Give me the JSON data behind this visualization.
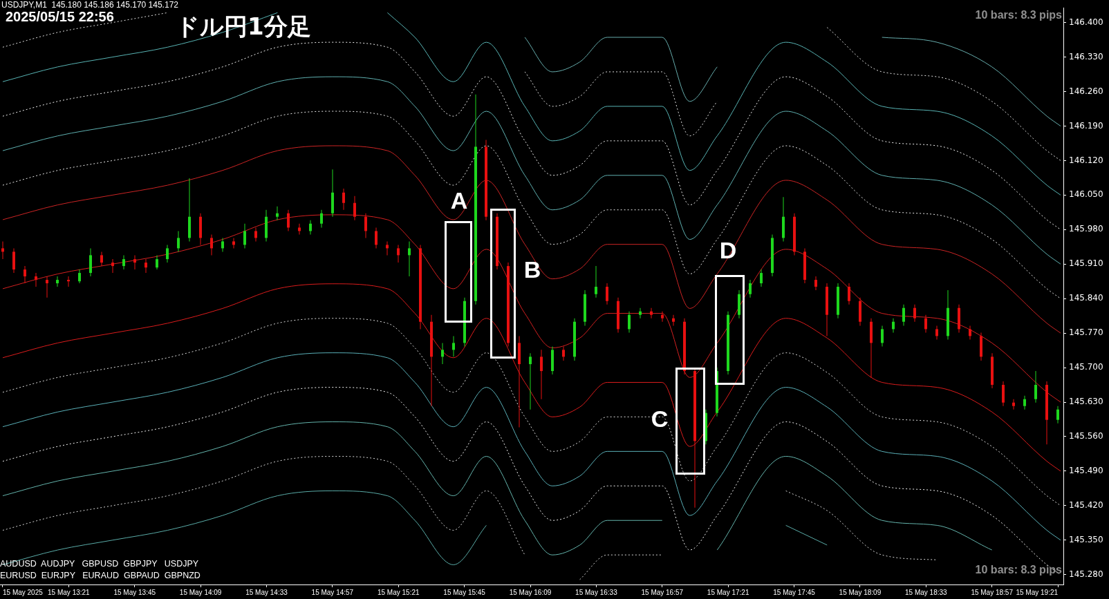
{
  "chart_data": {
    "type": "candlestick",
    "title": "ドル円1分足",
    "subtitle": "2025/05/15 22:56",
    "annotations": [
      "USDJPY,M1  145.180 145.186 145.170 145.172",
      "10 bars: 8.3 pips",
      "10 bars: 8.3 pips",
      "AUDUSD  AUDJPY   GBPUSD  GBPJPY   USDJPY",
      "EURUSD  EURJPY   EURAUD  GBPAUD  GBPNZD",
      "A",
      "B",
      "C",
      "D"
    ],
    "x": [
      "2025-05-15T12:57",
      "2025-05-15T13:17",
      "2025-05-15T13:37",
      "2025-05-15T13:57",
      "2025-05-15T14:17",
      "2025-05-15T14:37",
      "2025-05-15T14:57",
      "2025-05-15T15:17",
      "2025-05-15T15:27",
      "2025-05-15T15:41",
      "2025-05-15T15:53",
      "2025-05-15T16:07",
      "2025-05-15T16:17",
      "2025-05-15T16:27",
      "2025-05-15T16:37",
      "2025-05-15T16:57",
      "2025-05-15T17:07",
      "2025-05-15T17:17",
      "2025-05-15T17:42",
      "2025-05-15T17:57",
      "2025-05-15T18:17",
      "2025-05-15T18:37",
      "2025-05-15T18:57",
      "2025-05-15T19:17",
      "2025-05-15T19:22"
    ],
    "xlim": [
      "2025-05-15T12:56",
      "2025-05-15T19:23"
    ],
    "xticks": [
      {
        "value": "2025-05-15T12:57",
        "label": "15 May 2025"
      },
      {
        "value": "2025-05-15T13:21",
        "label": "15 May 13:21"
      },
      {
        "value": "2025-05-15T13:45",
        "label": "15 May 13:45"
      },
      {
        "value": "2025-05-15T14:09",
        "label": "15 May 14:09"
      },
      {
        "value": "2025-05-15T14:33",
        "label": "15 May 14:33"
      },
      {
        "value": "2025-05-15T14:57",
        "label": "15 May 14:57"
      },
      {
        "value": "2025-05-15T15:21",
        "label": "15 May 15:21"
      },
      {
        "value": "2025-05-15T15:45",
        "label": "15 May 15:45"
      },
      {
        "value": "2025-05-15T16:09",
        "label": "15 May 16:09"
      },
      {
        "value": "2025-05-15T16:33",
        "label": "15 May 16:33"
      },
      {
        "value": "2025-05-15T16:57",
        "label": "15 May 16:57"
      },
      {
        "value": "2025-05-15T17:21",
        "label": "15 May 17:21"
      },
      {
        "value": "2025-05-15T17:45",
        "label": "15 May 17:45"
      },
      {
        "value": "2025-05-15T18:09",
        "label": "15 May 18:09"
      },
      {
        "value": "2025-05-15T18:33",
        "label": "15 May 18:33"
      },
      {
        "value": "2025-05-15T18:57",
        "label": "15 May 18:57"
      },
      {
        "value": "2025-05-15T19:21",
        "label": "15 May 19:21"
      }
    ],
    "ylim": [
      145.26,
      146.43
    ],
    "yticks": [
      {
        "value": 145.28,
        "label": "145.280"
      },
      {
        "value": 145.35,
        "label": "145.350"
      },
      {
        "value": 145.42,
        "label": "145.420"
      },
      {
        "value": 145.49,
        "label": "145.490"
      },
      {
        "value": 145.56,
        "label": "145.560"
      },
      {
        "value": 145.63,
        "label": "145.630"
      },
      {
        "value": 145.7,
        "label": "145.700"
      },
      {
        "value": 145.77,
        "label": "145.770"
      },
      {
        "value": 145.84,
        "label": "145.840"
      },
      {
        "value": 145.91,
        "label": "145.910"
      },
      {
        "value": 145.98,
        "label": "145.980"
      },
      {
        "value": 146.05,
        "label": "146.050"
      },
      {
        "value": 146.12,
        "label": "146.120"
      },
      {
        "value": 146.19,
        "label": "146.190"
      },
      {
        "value": 146.26,
        "label": "146.260"
      },
      {
        "value": 146.33,
        "label": "146.330"
      },
      {
        "value": 146.4,
        "label": "146.400"
      }
    ],
    "grid": false,
    "series": [
      {
        "type": "candlestick",
        "x": [
          "2025-05-15T12:57",
          "2025-05-15T13:01",
          "2025-05-15T13:05",
          "2025-05-15T13:09",
          "2025-05-15T13:13",
          "2025-05-15T13:17",
          "2025-05-15T13:21",
          "2025-05-15T13:25",
          "2025-05-15T13:29",
          "2025-05-15T13:33",
          "2025-05-15T13:37",
          "2025-05-15T13:41",
          "2025-05-15T13:45",
          "2025-05-15T13:49",
          "2025-05-15T13:53",
          "2025-05-15T13:57",
          "2025-05-15T14:01",
          "2025-05-15T14:05",
          "2025-05-15T14:09",
          "2025-05-15T14:13",
          "2025-05-15T14:17",
          "2025-05-15T14:21",
          "2025-05-15T14:25",
          "2025-05-15T14:29",
          "2025-05-15T14:33",
          "2025-05-15T14:37",
          "2025-05-15T14:41",
          "2025-05-15T14:45",
          "2025-05-15T14:49",
          "2025-05-15T14:53",
          "2025-05-15T14:57",
          "2025-05-15T15:01",
          "2025-05-15T15:05",
          "2025-05-15T15:09",
          "2025-05-15T15:13",
          "2025-05-15T15:17",
          "2025-05-15T15:21",
          "2025-05-15T15:25",
          "2025-05-15T15:29",
          "2025-05-15T15:33",
          "2025-05-15T15:37",
          "2025-05-15T15:41",
          "2025-05-15T15:45",
          "2025-05-15T15:49",
          "2025-05-15T15:53",
          "2025-05-15T15:57",
          "2025-05-15T16:01",
          "2025-05-15T16:05",
          "2025-05-15T16:09",
          "2025-05-15T16:13",
          "2025-05-15T16:17",
          "2025-05-15T16:21",
          "2025-05-15T16:25",
          "2025-05-15T16:29",
          "2025-05-15T16:33",
          "2025-05-15T16:37",
          "2025-05-15T16:41",
          "2025-05-15T16:45",
          "2025-05-15T16:49",
          "2025-05-15T16:53",
          "2025-05-15T16:57",
          "2025-05-15T17:01",
          "2025-05-15T17:05",
          "2025-05-15T17:09",
          "2025-05-15T17:13",
          "2025-05-15T17:17",
          "2025-05-15T17:21",
          "2025-05-15T17:25",
          "2025-05-15T17:29",
          "2025-05-15T17:33",
          "2025-05-15T17:37",
          "2025-05-15T17:41",
          "2025-05-15T17:45",
          "2025-05-15T17:49",
          "2025-05-15T17:53",
          "2025-05-15T17:57",
          "2025-05-15T18:01",
          "2025-05-15T18:05",
          "2025-05-15T18:09",
          "2025-05-15T18:13",
          "2025-05-15T18:17",
          "2025-05-15T18:21",
          "2025-05-15T18:25",
          "2025-05-15T18:29",
          "2025-05-15T18:33",
          "2025-05-15T18:37",
          "2025-05-15T18:41",
          "2025-05-15T18:45",
          "2025-05-15T18:49",
          "2025-05-15T18:53",
          "2025-05-15T18:57",
          "2025-05-15T19:01",
          "2025-05-15T19:05",
          "2025-05-15T19:09",
          "2025-05-15T19:13",
          "2025-05-15T19:17",
          "2025-05-15T19:21"
        ],
        "ohlc": [
          [
            145.942,
            145.956,
            145.92,
            145.935
          ],
          [
            145.935,
            145.942,
            145.892,
            145.899
          ],
          [
            145.899,
            145.906,
            145.871,
            145.885
          ],
          [
            145.885,
            145.892,
            145.864,
            145.878
          ],
          [
            145.878,
            145.885,
            145.842,
            145.871
          ],
          [
            145.871,
            145.885,
            145.864,
            145.878
          ],
          [
            145.878,
            145.885,
            145.864,
            145.875
          ],
          [
            145.875,
            145.899,
            145.871,
            145.892
          ],
          [
            145.892,
            145.942,
            145.885,
            145.928
          ],
          [
            145.928,
            145.935,
            145.906,
            145.913
          ],
          [
            145.913,
            145.92,
            145.892,
            145.906
          ],
          [
            145.906,
            145.928,
            145.899,
            145.92
          ],
          [
            145.92,
            145.928,
            145.899,
            145.913
          ],
          [
            145.913,
            145.92,
            145.892,
            145.903
          ],
          [
            145.903,
            145.928,
            145.899,
            145.92
          ],
          [
            145.92,
            145.949,
            145.913,
            145.942
          ],
          [
            145.942,
            145.977,
            145.935,
            145.963
          ],
          [
            145.963,
            146.084,
            145.956,
            146.006
          ],
          [
            146.006,
            146.013,
            145.949,
            145.963
          ],
          [
            145.963,
            145.97,
            145.928,
            145.942
          ],
          [
            145.942,
            145.963,
            145.935,
            145.956
          ],
          [
            145.956,
            145.963,
            145.942,
            145.949
          ],
          [
            145.949,
            145.992,
            145.942,
            145.977
          ],
          [
            145.977,
            145.984,
            145.956,
            145.963
          ],
          [
            145.963,
            146.02,
            145.956,
            146.006
          ],
          [
            146.006,
            146.027,
            145.999,
            146.013
          ],
          [
            146.013,
            146.02,
            145.977,
            145.984
          ],
          [
            145.984,
            145.992,
            145.97,
            145.977
          ],
          [
            145.977,
            145.999,
            145.97,
            145.992
          ],
          [
            145.992,
            146.02,
            145.984,
            146.013
          ],
          [
            146.013,
            146.102,
            146.006,
            146.055
          ],
          [
            146.055,
            146.063,
            146.02,
            146.034
          ],
          [
            146.034,
            146.048,
            145.999,
            146.006
          ],
          [
            146.006,
            146.013,
            145.963,
            145.977
          ],
          [
            145.977,
            145.984,
            145.942,
            145.949
          ],
          [
            145.949,
            145.956,
            145.928,
            145.942
          ],
          [
            145.942,
            145.949,
            145.913,
            145.928
          ],
          [
            145.928,
            145.956,
            145.885,
            145.942
          ],
          [
            145.942,
            145.949,
            145.778,
            145.793
          ],
          [
            145.793,
            145.807,
            145.622,
            145.722
          ],
          [
            145.722,
            145.75,
            145.707,
            145.736
          ],
          [
            145.736,
            145.764,
            145.722,
            145.75
          ],
          [
            145.75,
            145.842,
            145.743,
            145.835
          ],
          [
            145.835,
            146.254,
            145.828,
            146.148
          ],
          [
            146.148,
            146.162,
            145.999,
            146.006
          ],
          [
            146.006,
            146.013,
            145.899,
            145.906
          ],
          [
            145.906,
            145.913,
            145.743,
            145.75
          ],
          [
            145.75,
            145.764,
            145.579,
            145.707
          ],
          [
            145.707,
            145.729,
            145.615,
            145.722
          ],
          [
            145.722,
            145.736,
            145.636,
            145.693
          ],
          [
            145.693,
            145.743,
            145.686,
            145.736
          ],
          [
            145.736,
            145.743,
            145.714,
            145.722
          ],
          [
            145.722,
            145.8,
            145.714,
            145.793
          ],
          [
            145.793,
            145.857,
            145.785,
            145.849
          ],
          [
            145.849,
            145.906,
            145.842,
            145.864
          ],
          [
            145.864,
            145.871,
            145.828,
            145.835
          ],
          [
            145.835,
            145.842,
            145.771,
            145.778
          ],
          [
            145.778,
            145.814,
            145.771,
            145.807
          ],
          [
            145.807,
            145.821,
            145.8,
            145.814
          ],
          [
            145.814,
            145.821,
            145.8,
            145.807
          ],
          [
            145.807,
            145.814,
            145.793,
            145.8
          ],
          [
            145.8,
            145.807,
            145.785,
            145.793
          ],
          [
            145.793,
            145.8,
            145.686,
            145.693
          ],
          [
            145.693,
            145.7,
            145.416,
            145.551
          ],
          [
            145.551,
            145.615,
            145.544,
            145.608
          ],
          [
            145.608,
            145.7,
            145.601,
            145.693
          ],
          [
            145.693,
            145.814,
            145.686,
            145.807
          ],
          [
            145.807,
            145.857,
            145.8,
            145.849
          ],
          [
            145.849,
            145.878,
            145.842,
            145.871
          ],
          [
            145.871,
            145.899,
            145.864,
            145.892
          ],
          [
            145.892,
            145.97,
            145.885,
            145.963
          ],
          [
            145.963,
            146.046,
            145.956,
            146.006
          ],
          [
            146.006,
            146.013,
            145.928,
            145.935
          ],
          [
            145.935,
            145.942,
            145.871,
            145.878
          ],
          [
            145.878,
            145.885,
            145.857,
            145.864
          ],
          [
            145.864,
            145.871,
            145.764,
            145.807
          ],
          [
            145.807,
            145.871,
            145.8,
            145.864
          ],
          [
            145.864,
            145.871,
            145.828,
            145.835
          ],
          [
            145.835,
            145.842,
            145.785,
            145.793
          ],
          [
            145.793,
            145.8,
            145.679,
            145.75
          ],
          [
            145.75,
            145.785,
            145.743,
            145.778
          ],
          [
            145.778,
            145.8,
            145.771,
            145.793
          ],
          [
            145.793,
            145.828,
            145.785,
            145.821
          ],
          [
            145.821,
            145.828,
            145.793,
            145.8
          ],
          [
            145.8,
            145.807,
            145.771,
            145.778
          ],
          [
            145.778,
            145.785,
            145.757,
            145.764
          ],
          [
            145.764,
            145.857,
            145.757,
            145.821
          ],
          [
            145.821,
            145.828,
            145.771,
            145.778
          ],
          [
            145.778,
            145.785,
            145.757,
            145.764
          ],
          [
            145.764,
            145.771,
            145.714,
            145.722
          ],
          [
            145.722,
            145.729,
            145.658,
            145.665
          ],
          [
            145.665,
            145.672,
            145.622,
            145.629
          ],
          [
            145.629,
            145.636,
            145.615,
            145.622
          ],
          [
            145.622,
            145.643,
            145.615,
            145.636
          ],
          [
            145.636,
            145.693,
            145.629,
            145.665
          ],
          [
            145.665,
            145.672,
            145.544,
            145.594
          ],
          [
            145.594,
            145.622,
            145.587,
            145.615
          ]
        ],
        "colors": [
          "#e81010",
          "#e81010",
          "#e81010",
          "#e81010",
          "#e81010",
          "#1ed81e",
          "#e81010",
          "#1ed81e",
          "#1ed81e",
          "#e81010",
          "#e81010",
          "#1ed81e",
          "#e81010",
          "#e81010",
          "#1ed81e",
          "#1ed81e",
          "#1ed81e",
          "#1ed81e",
          "#e81010",
          "#e81010",
          "#1ed81e",
          "#e81010",
          "#1ed81e",
          "#e81010",
          "#1ed81e",
          "#1ed81e",
          "#e81010",
          "#e81010",
          "#1ed81e",
          "#1ed81e",
          "#1ed81e",
          "#e81010",
          "#e81010",
          "#e81010",
          "#e81010",
          "#e81010",
          "#e81010",
          "#1ed81e",
          "#e81010",
          "#e81010",
          "#1ed81e",
          "#1ed81e",
          "#1ed81e",
          "#1ed81e",
          "#e81010",
          "#e81010",
          "#e81010",
          "#e81010",
          "#1ed81e",
          "#e81010",
          "#1ed81e",
          "#e81010",
          "#1ed81e",
          "#1ed81e",
          "#1ed81e",
          "#e81010",
          "#e81010",
          "#1ed81e",
          "#1ed81e",
          "#e81010",
          "#e81010",
          "#e81010",
          "#e81010",
          "#e81010",
          "#1ed81e",
          "#1ed81e",
          "#1ed81e",
          "#1ed81e",
          "#1ed81e",
          "#1ed81e",
          "#1ed81e",
          "#1ed81e",
          "#e81010",
          "#e81010",
          "#e81010",
          "#e81010",
          "#1ed81e",
          "#e81010",
          "#e81010",
          "#e81010",
          "#1ed81e",
          "#1ed81e",
          "#1ed81e",
          "#e81010",
          "#e81010",
          "#e81010",
          "#1ed81e",
          "#e81010",
          "#e81010",
          "#e81010",
          "#e81010",
          "#e81010",
          "#e81010",
          "#1ed81e",
          "#1ed81e",
          "#e81010",
          "#1ed81e"
        ]
      },
      {
        "type": "line",
        "color": "#d42020",
        "line_style": "solid",
        "values": [
          145.86,
          145.89,
          145.91,
          145.93,
          145.96,
          146.0,
          146.01,
          146.0,
          145.95,
          145.86,
          145.94,
          145.81,
          145.74,
          145.76,
          145.81,
          145.81,
          145.68,
          145.75,
          145.94,
          145.9,
          145.81,
          145.8,
          145.75,
          145.65,
          145.63
        ]
      },
      {
        "type": "line",
        "color": "#cc2424",
        "line_style": "solid",
        "values": [
          146.0,
          146.03,
          146.05,
          146.07,
          146.1,
          146.14,
          146.15,
          146.14,
          146.09,
          146.0,
          146.08,
          145.95,
          145.88,
          145.9,
          145.95,
          145.95,
          145.82,
          145.89,
          146.08,
          146.04,
          145.95,
          145.94,
          145.89,
          145.79,
          145.77
        ]
      },
      {
        "type": "line",
        "color": "#e8e8e8",
        "line_style": "dotted",
        "values": [
          146.07,
          146.1,
          146.12,
          146.14,
          146.17,
          146.21,
          146.22,
          146.21,
          146.16,
          146.07,
          146.15,
          146.02,
          145.95,
          145.97,
          146.02,
          146.02,
          145.89,
          145.96,
          146.15,
          146.11,
          146.02,
          146.01,
          145.96,
          145.86,
          145.84
        ]
      },
      {
        "type": "line",
        "color": "#5fb0b0",
        "line_style": "solid",
        "values": [
          146.14,
          146.17,
          146.19,
          146.21,
          146.24,
          146.28,
          146.29,
          146.28,
          146.23,
          146.14,
          146.22,
          146.09,
          146.02,
          146.04,
          146.09,
          146.09,
          145.96,
          146.03,
          146.22,
          146.18,
          146.09,
          146.08,
          146.03,
          145.93,
          145.91
        ]
      },
      {
        "type": "line",
        "color": "#f0f0f0",
        "line_style": "dotted",
        "values": [
          146.21,
          146.24,
          146.26,
          146.28,
          146.31,
          146.35,
          146.36,
          146.35,
          146.3,
          146.21,
          146.29,
          146.16,
          146.09,
          146.11,
          146.16,
          146.16,
          146.03,
          146.1,
          146.29,
          146.25,
          146.16,
          146.15,
          146.1,
          146.0,
          145.98
        ]
      },
      {
        "type": "line",
        "color": "#58b4b4",
        "line_style": "solid",
        "values": [
          146.28,
          146.31,
          146.33,
          146.35,
          146.38,
          146.42,
          null,
          146.42,
          146.37,
          146.28,
          146.36,
          146.23,
          146.16,
          146.18,
          146.23,
          146.23,
          146.1,
          146.17,
          146.36,
          146.32,
          146.23,
          146.22,
          146.17,
          146.07,
          146.05
        ]
      },
      {
        "type": "line",
        "color": "#e0e0e0",
        "line_style": "dotted",
        "values": [
          146.35,
          146.38,
          146.4,
          146.42,
          null,
          null,
          null,
          null,
          null,
          null,
          null,
          146.3,
          146.23,
          146.25,
          146.3,
          146.3,
          146.17,
          146.24,
          null,
          146.39,
          146.3,
          146.29,
          146.24,
          146.14,
          146.12
        ]
      },
      {
        "type": "line",
        "color": "#66acac",
        "line_style": "solid",
        "values": [
          null,
          null,
          null,
          null,
          null,
          null,
          null,
          null,
          null,
          null,
          null,
          146.37,
          146.3,
          146.32,
          146.37,
          146.37,
          146.24,
          146.31,
          null,
          null,
          146.37,
          146.36,
          146.31,
          146.21,
          146.19
        ]
      },
      {
        "type": "line",
        "color": "#dc1c1c",
        "line_style": "solid",
        "values": [
          145.72,
          145.75,
          145.77,
          145.79,
          145.82,
          145.86,
          145.87,
          145.86,
          145.81,
          145.72,
          145.8,
          145.67,
          145.6,
          145.62,
          145.67,
          145.67,
          145.54,
          145.61,
          145.8,
          145.76,
          145.67,
          145.66,
          145.61,
          145.51,
          145.49
        ]
      },
      {
        "type": "line",
        "color": "#dcdcdc",
        "line_style": "dotted",
        "values": [
          145.65,
          145.68,
          145.7,
          145.72,
          145.75,
          145.79,
          145.8,
          145.79,
          145.74,
          145.65,
          145.73,
          145.6,
          145.53,
          145.55,
          145.6,
          145.6,
          145.47,
          145.54,
          145.73,
          145.69,
          145.6,
          145.59,
          145.54,
          145.44,
          145.42
        ]
      },
      {
        "type": "line",
        "color": "#5ab0b8",
        "line_style": "solid",
        "values": [
          145.58,
          145.61,
          145.63,
          145.65,
          145.68,
          145.72,
          145.73,
          145.72,
          145.67,
          145.58,
          145.66,
          145.53,
          145.46,
          145.48,
          145.53,
          145.53,
          145.4,
          145.47,
          145.66,
          145.62,
          145.53,
          145.52,
          145.47,
          145.37,
          145.35
        ]
      },
      {
        "type": "line",
        "color": "#f4f4f4",
        "line_style": "dotted",
        "values": [
          145.51,
          145.54,
          145.56,
          145.58,
          145.61,
          145.65,
          145.66,
          145.65,
          145.6,
          145.51,
          145.59,
          145.46,
          145.39,
          145.41,
          145.46,
          145.46,
          145.33,
          145.4,
          145.59,
          145.55,
          145.46,
          145.45,
          145.4,
          145.3,
          145.28
        ]
      },
      {
        "type": "line",
        "color": "#64b4ac",
        "line_style": "solid",
        "values": [
          145.44,
          145.47,
          145.49,
          145.51,
          145.54,
          145.58,
          145.59,
          145.58,
          145.53,
          145.44,
          145.52,
          145.39,
          145.32,
          145.34,
          145.39,
          145.39,
          null,
          145.33,
          145.52,
          145.48,
          145.39,
          145.38,
          145.33,
          null,
          null
        ]
      },
      {
        "type": "line",
        "color": "#d8d8d8",
        "line_style": "dotted",
        "values": [
          145.37,
          145.4,
          145.42,
          145.44,
          145.47,
          145.51,
          145.52,
          145.51,
          145.46,
          145.37,
          145.45,
          145.32,
          null,
          145.27,
          145.32,
          145.32,
          null,
          null,
          145.45,
          145.41,
          145.32,
          145.31,
          null,
          null,
          null
        ]
      },
      {
        "type": "line",
        "color": "#5aaca8",
        "line_style": "solid",
        "values": [
          145.3,
          145.33,
          145.35,
          145.37,
          145.4,
          145.44,
          145.45,
          145.44,
          145.39,
          145.3,
          145.38,
          null,
          null,
          null,
          null,
          null,
          null,
          null,
          145.38,
          145.34,
          null,
          null,
          null,
          null,
          null
        ]
      }
    ]
  }
}
